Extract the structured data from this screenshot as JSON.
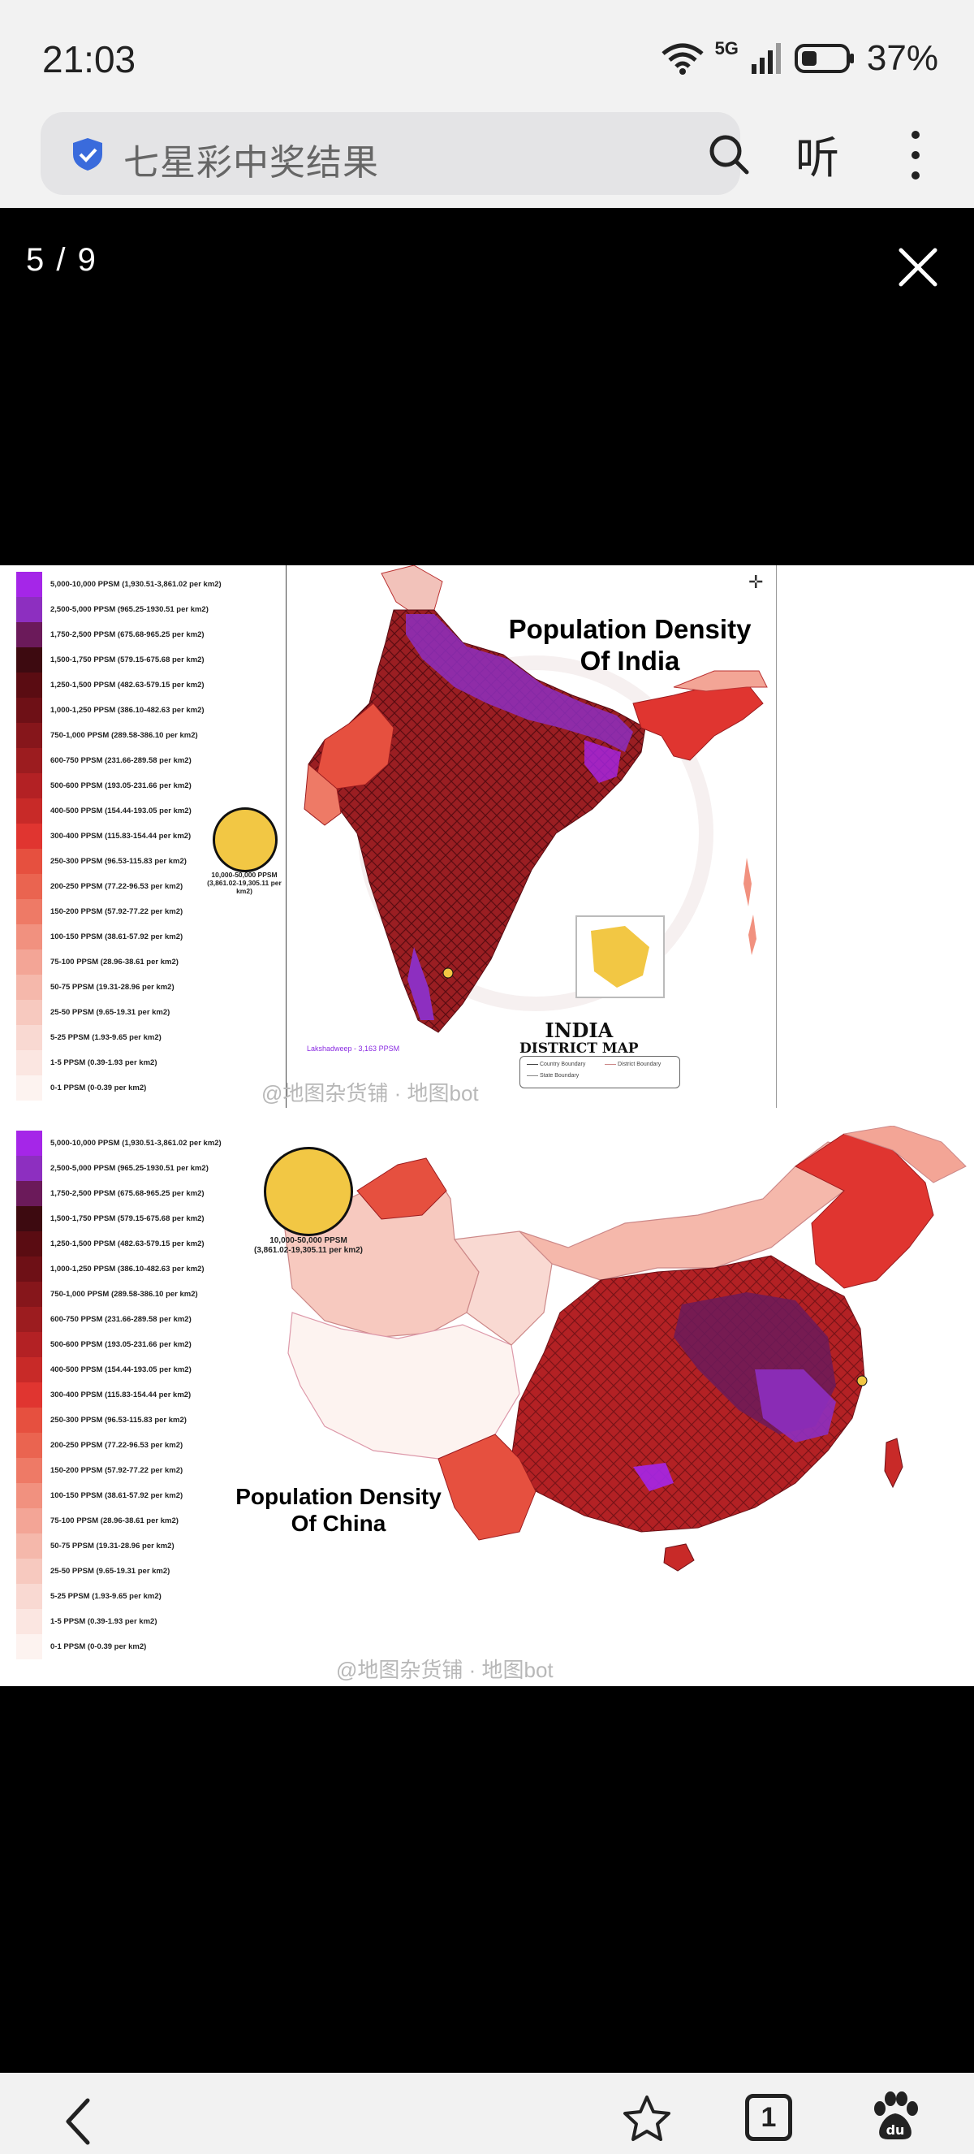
{
  "status_bar": {
    "time": "21:03",
    "network": "5G",
    "battery": "37%"
  },
  "address_bar": {
    "query": "七星彩中奖结果",
    "listen_label": "听"
  },
  "viewer": {
    "counter": "5 / 9"
  },
  "india": {
    "title_line1": "Population Density",
    "title_line2": "Of India",
    "bubble_label_line1": "10,000-50,000 PPSM",
    "bubble_label_line2": "(3,861.02-19,305.11 per km2)",
    "lakshadweep": "Lakshadweep - 3,163 PPSM",
    "district_title": "INDIA",
    "district_subtitle": "DISTRICT MAP",
    "map_legend": [
      "Country Boundary",
      "District Boundary",
      "State Boundary"
    ],
    "watermark": "@地图杂货铺 · 地图bot"
  },
  "china": {
    "title_line1": "Population Density",
    "title_line2": "Of China",
    "bubble_label_line1": "10,000-50,000 PPSM",
    "bubble_label_line2": "(3,861.02-19,305.11 per km2)",
    "watermark": "@地图杂货铺 · 地图bot"
  },
  "legend": [
    {
      "label": "5,000-10,000 PPSM (1,930.51-3,861.02 per km2)",
      "color": "#a526e8"
    },
    {
      "label": "2,500-5,000 PPSM (965.25-1930.51 per km2)",
      "color": "#8d2fc0"
    },
    {
      "label": "1,750-2,500 PPSM (675.68-965.25 per km2)",
      "color": "#6b1a5a"
    },
    {
      "label": "1,500-1,750 PPSM (579.15-675.68 per km2)",
      "color": "#3d0a10"
    },
    {
      "label": "1,250-1,500 PPSM (482.63-579.15 per km2)",
      "color": "#5a0c12"
    },
    {
      "label": "1,000-1,250 PPSM (386.10-482.63 per km2)",
      "color": "#6e1016"
    },
    {
      "label": "750-1,000 PPSM (289.58-386.10 per km2)",
      "color": "#86161b"
    },
    {
      "label": "600-750 PPSM (231.66-289.58 per km2)",
      "color": "#9c1c1f"
    },
    {
      "label": "500-600 PPSM (193.05-231.66 per km2)",
      "color": "#b32124"
    },
    {
      "label": "400-500 PPSM (154.44-193.05 per km2)",
      "color": "#c82a28"
    },
    {
      "label": "300-400 PPSM (115.83-154.44 per km2)",
      "color": "#e03530"
    },
    {
      "label": "250-300 PPSM (96.53-115.83 per km2)",
      "color": "#e6503f"
    },
    {
      "label": "200-250 PPSM (77.22-96.53 per km2)",
      "color": "#ea6450"
    },
    {
      "label": "150-200 PPSM (57.92-77.22 per km2)",
      "color": "#ee7a66"
    },
    {
      "label": "100-150 PPSM (38.61-57.92 per km2)",
      "color": "#f1917f"
    },
    {
      "label": "75-100 PPSM (28.96-38.61 per km2)",
      "color": "#f3a596"
    },
    {
      "label": "50-75 PPSM (19.31-28.96 per km2)",
      "color": "#f5b8ab"
    },
    {
      "label": "25-50 PPSM (9.65-19.31 per km2)",
      "color": "#f7c9bf"
    },
    {
      "label": "5-25 PPSM (1.93-9.65 per km2)",
      "color": "#f9d9d2"
    },
    {
      "label": "1-5 PPSM (0.39-1.93 per km2)",
      "color": "#fbe6e1"
    },
    {
      "label": "0-1 PPSM (0-0.39 per km2)",
      "color": "#fdf3f0"
    }
  ]
}
